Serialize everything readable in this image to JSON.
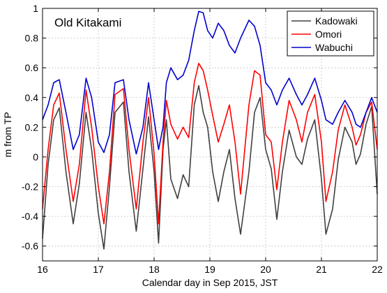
{
  "chart_data": {
    "type": "line",
    "annotation": "Old Kitakami",
    "xlabel": "Calendar day in Sep 2015, JST",
    "ylabel": "m from TP",
    "xlim": [
      16,
      22
    ],
    "ylim": [
      -0.7,
      1.0
    ],
    "xticks": [
      16,
      17,
      18,
      19,
      20,
      21,
      22
    ],
    "yticks": [
      -0.6,
      -0.4,
      -0.2,
      0,
      0.2,
      0.4,
      0.6,
      0.8,
      1
    ],
    "ytick_labels": [
      "-0.6",
      "-0.4",
      "-0.2",
      "0",
      "0.2",
      "0.4",
      "0.6",
      "0.8",
      "1"
    ],
    "grid": true,
    "legend_position": "top-right",
    "series": [
      {
        "name": "Kadowaki",
        "color": "#404040",
        "x": [
          16.0,
          16.1,
          16.2,
          16.3,
          16.42,
          16.55,
          16.66,
          16.78,
          16.88,
          17.0,
          17.1,
          17.2,
          17.3,
          17.45,
          17.55,
          17.68,
          17.8,
          17.9,
          18.0,
          18.08,
          18.16,
          18.22,
          18.3,
          18.42,
          18.52,
          18.62,
          18.72,
          18.8,
          18.88,
          18.96,
          19.05,
          19.15,
          19.25,
          19.35,
          19.45,
          19.55,
          19.7,
          19.8,
          19.9,
          20.0,
          20.1,
          20.2,
          20.3,
          20.42,
          20.55,
          20.65,
          20.75,
          20.88,
          21.0,
          21.08,
          21.2,
          21.3,
          21.42,
          21.55,
          21.62,
          21.7,
          21.8,
          21.9,
          22.0
        ],
        "y": [
          -0.55,
          -0.05,
          0.25,
          0.33,
          -0.1,
          -0.45,
          -0.18,
          0.3,
          0.05,
          -0.38,
          -0.62,
          -0.2,
          0.3,
          0.37,
          -0.1,
          -0.5,
          -0.08,
          0.27,
          -0.1,
          -0.58,
          0.05,
          0.25,
          -0.15,
          -0.28,
          -0.12,
          -0.2,
          0.35,
          0.48,
          0.3,
          0.2,
          -0.1,
          -0.3,
          -0.1,
          0.05,
          -0.28,
          -0.52,
          -0.1,
          0.3,
          0.4,
          0.05,
          -0.08,
          -0.42,
          -0.1,
          0.18,
          0.0,
          -0.05,
          0.12,
          0.25,
          -0.15,
          -0.52,
          -0.35,
          -0.02,
          0.2,
          0.1,
          -0.05,
          0.02,
          0.22,
          0.34,
          -0.25
        ],
        "label": ""
      },
      {
        "name": "Omori",
        "color": "#ff0000",
        "x": [
          16.0,
          16.1,
          16.2,
          16.3,
          16.42,
          16.55,
          16.66,
          16.78,
          16.88,
          17.0,
          17.1,
          17.2,
          17.3,
          17.45,
          17.55,
          17.68,
          17.8,
          17.9,
          18.0,
          18.08,
          18.16,
          18.22,
          18.3,
          18.42,
          18.52,
          18.62,
          18.72,
          18.8,
          18.88,
          18.96,
          19.05,
          19.15,
          19.25,
          19.35,
          19.45,
          19.55,
          19.7,
          19.8,
          19.9,
          20.0,
          20.1,
          20.2,
          20.3,
          20.42,
          20.55,
          20.65,
          20.75,
          20.88,
          21.0,
          21.08,
          21.2,
          21.3,
          21.42,
          21.55,
          21.62,
          21.7,
          21.8,
          21.9,
          22.0
        ],
        "y": [
          -0.35,
          0.05,
          0.35,
          0.43,
          0.05,
          -0.3,
          -0.05,
          0.45,
          0.2,
          -0.2,
          -0.45,
          -0.1,
          0.42,
          0.46,
          0.05,
          -0.35,
          0.1,
          0.4,
          0.02,
          -0.45,
          0.1,
          0.38,
          0.22,
          0.12,
          0.2,
          0.13,
          0.5,
          0.63,
          0.58,
          0.45,
          0.28,
          0.1,
          0.22,
          0.35,
          0.1,
          -0.25,
          0.35,
          0.58,
          0.55,
          0.15,
          0.1,
          -0.22,
          0.1,
          0.38,
          0.25,
          0.1,
          0.3,
          0.42,
          0.1,
          -0.3,
          -0.1,
          0.18,
          0.35,
          0.2,
          0.08,
          0.15,
          0.3,
          0.37,
          0.05
        ],
        "label": ""
      },
      {
        "name": "Wabuchi",
        "color": "#0000cc",
        "x": [
          16.0,
          16.1,
          16.2,
          16.3,
          16.42,
          16.55,
          16.66,
          16.78,
          16.88,
          17.0,
          17.1,
          17.2,
          17.3,
          17.45,
          17.55,
          17.68,
          17.8,
          17.9,
          18.0,
          18.08,
          18.16,
          18.22,
          18.3,
          18.42,
          18.52,
          18.62,
          18.72,
          18.8,
          18.88,
          18.96,
          19.05,
          19.15,
          19.25,
          19.35,
          19.45,
          19.55,
          19.7,
          19.8,
          19.9,
          20.0,
          20.1,
          20.2,
          20.3,
          20.42,
          20.55,
          20.65,
          20.75,
          20.88,
          21.0,
          21.08,
          21.2,
          21.3,
          21.42,
          21.55,
          21.62,
          21.7,
          21.8,
          21.9,
          22.0
        ],
        "y": [
          0.25,
          0.35,
          0.5,
          0.52,
          0.3,
          0.05,
          0.15,
          0.53,
          0.4,
          0.1,
          0.03,
          0.15,
          0.5,
          0.52,
          0.25,
          0.02,
          0.2,
          0.5,
          0.25,
          0.05,
          0.2,
          0.5,
          0.6,
          0.52,
          0.55,
          0.65,
          0.85,
          0.98,
          0.97,
          0.85,
          0.8,
          0.9,
          0.85,
          0.75,
          0.7,
          0.8,
          0.92,
          0.88,
          0.75,
          0.5,
          0.45,
          0.35,
          0.45,
          0.53,
          0.42,
          0.35,
          0.42,
          0.53,
          0.38,
          0.25,
          0.22,
          0.3,
          0.38,
          0.3,
          0.22,
          0.2,
          0.3,
          0.4,
          0.3
        ],
        "label": ""
      }
    ]
  },
  "colors": {
    "axis": "#000000",
    "grid": "#b0b0b0",
    "background": "#ffffff"
  }
}
